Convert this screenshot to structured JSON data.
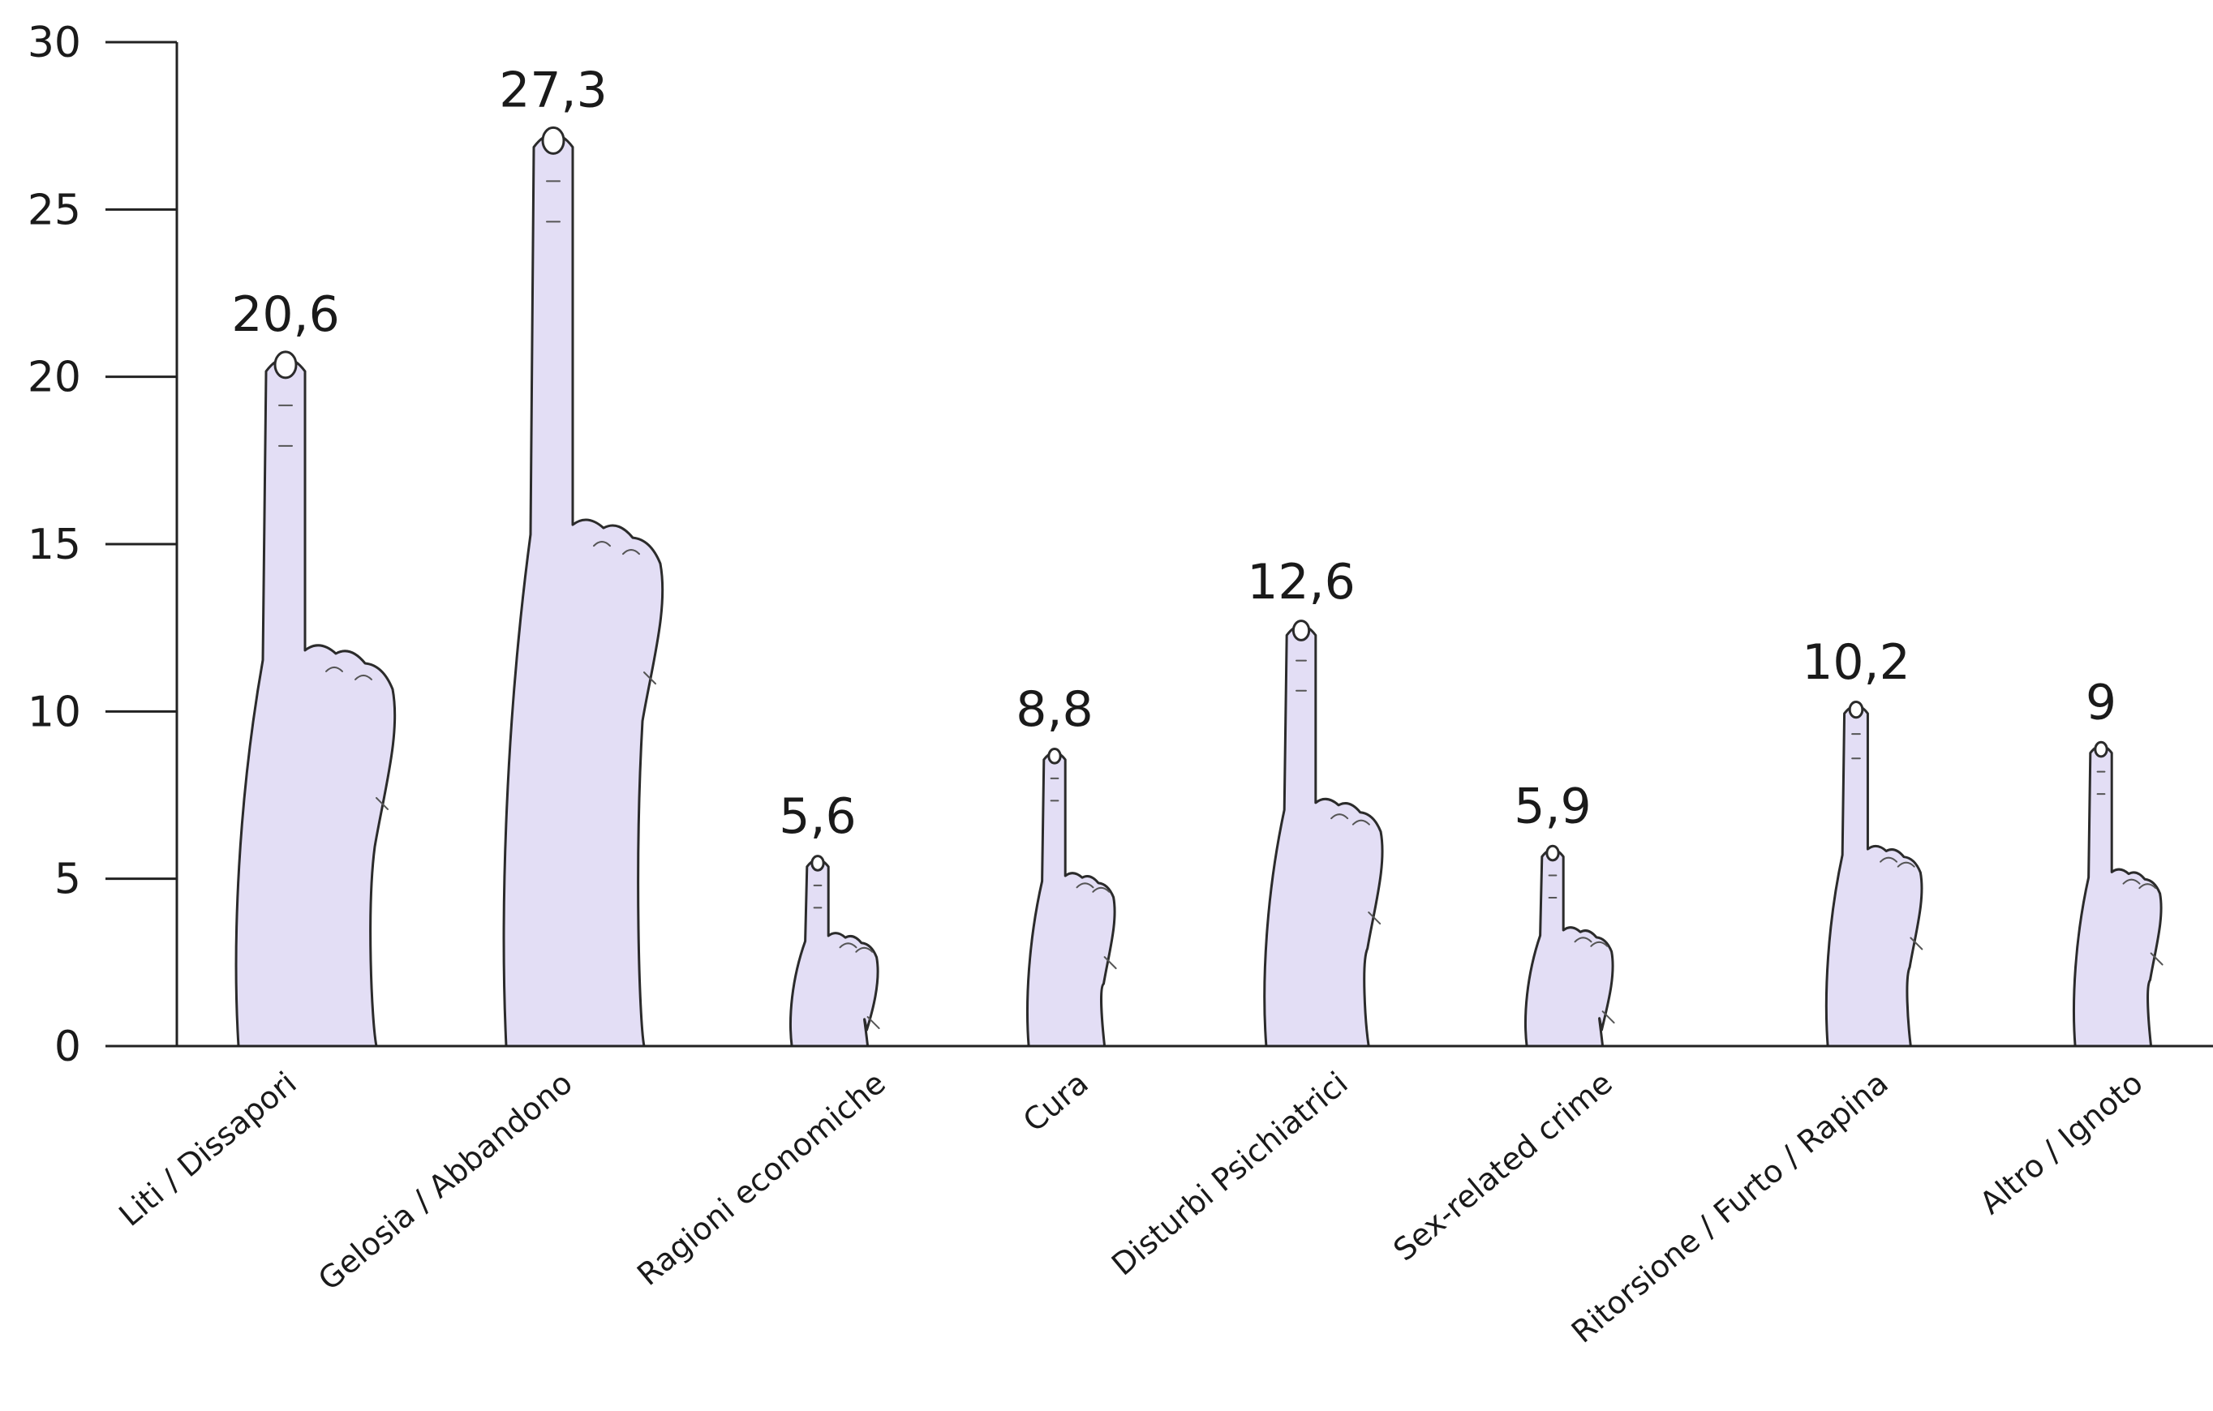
{
  "chart_data": {
    "type": "bar",
    "categories": [
      "Liti / Dissapori",
      "Gelosia / Abbandono",
      "Ragioni economiche",
      "Cura",
      "Disturbi Psichiatrici",
      "Sex-related crime",
      "Ritorsione / Furto / Rapina",
      "Altro / Ignoto"
    ],
    "values": [
      20.6,
      27.3,
      5.6,
      8.8,
      12.6,
      5.9,
      10.2,
      9
    ],
    "value_labels": [
      "20,6",
      "27,3",
      "5,6",
      "8,8",
      "12,6",
      "5,9",
      "10,2",
      "9"
    ],
    "title": "",
    "xlabel": "",
    "ylabel": "",
    "ylim": [
      0,
      30
    ],
    "yticks": [
      0,
      5,
      10,
      15,
      20,
      25,
      30
    ],
    "ytick_labels": [
      "0",
      "5",
      "10",
      "15",
      "20",
      "25",
      "30"
    ],
    "grid": false,
    "mark_style": "pointing-hand",
    "bar_color": "#e3def5"
  }
}
